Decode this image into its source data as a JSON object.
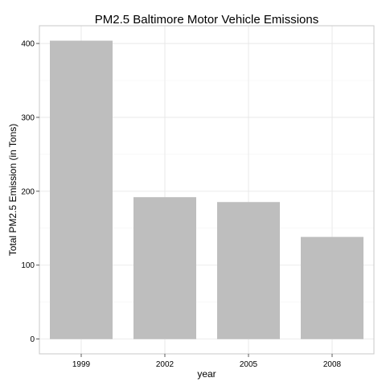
{
  "chart_data": {
    "type": "bar",
    "title": "PM2.5 Baltimore Motor Vehicle Emissions",
    "xlabel": "year",
    "ylabel": "Total PM2.5 Emission (in Tons)",
    "categories": [
      "1999",
      "2002",
      "2005",
      "2008"
    ],
    "values": [
      403.8,
      192.0,
      185.4,
      138.2
    ],
    "ylim": [
      -20,
      424
    ],
    "yticks": [
      0,
      100,
      200,
      300,
      400
    ],
    "grid": true,
    "colors": {
      "bar": "#bebebe",
      "grid_major": "#e5e5e5",
      "grid_minor": "#f3f3f3",
      "border": "#c8c8c8"
    }
  }
}
